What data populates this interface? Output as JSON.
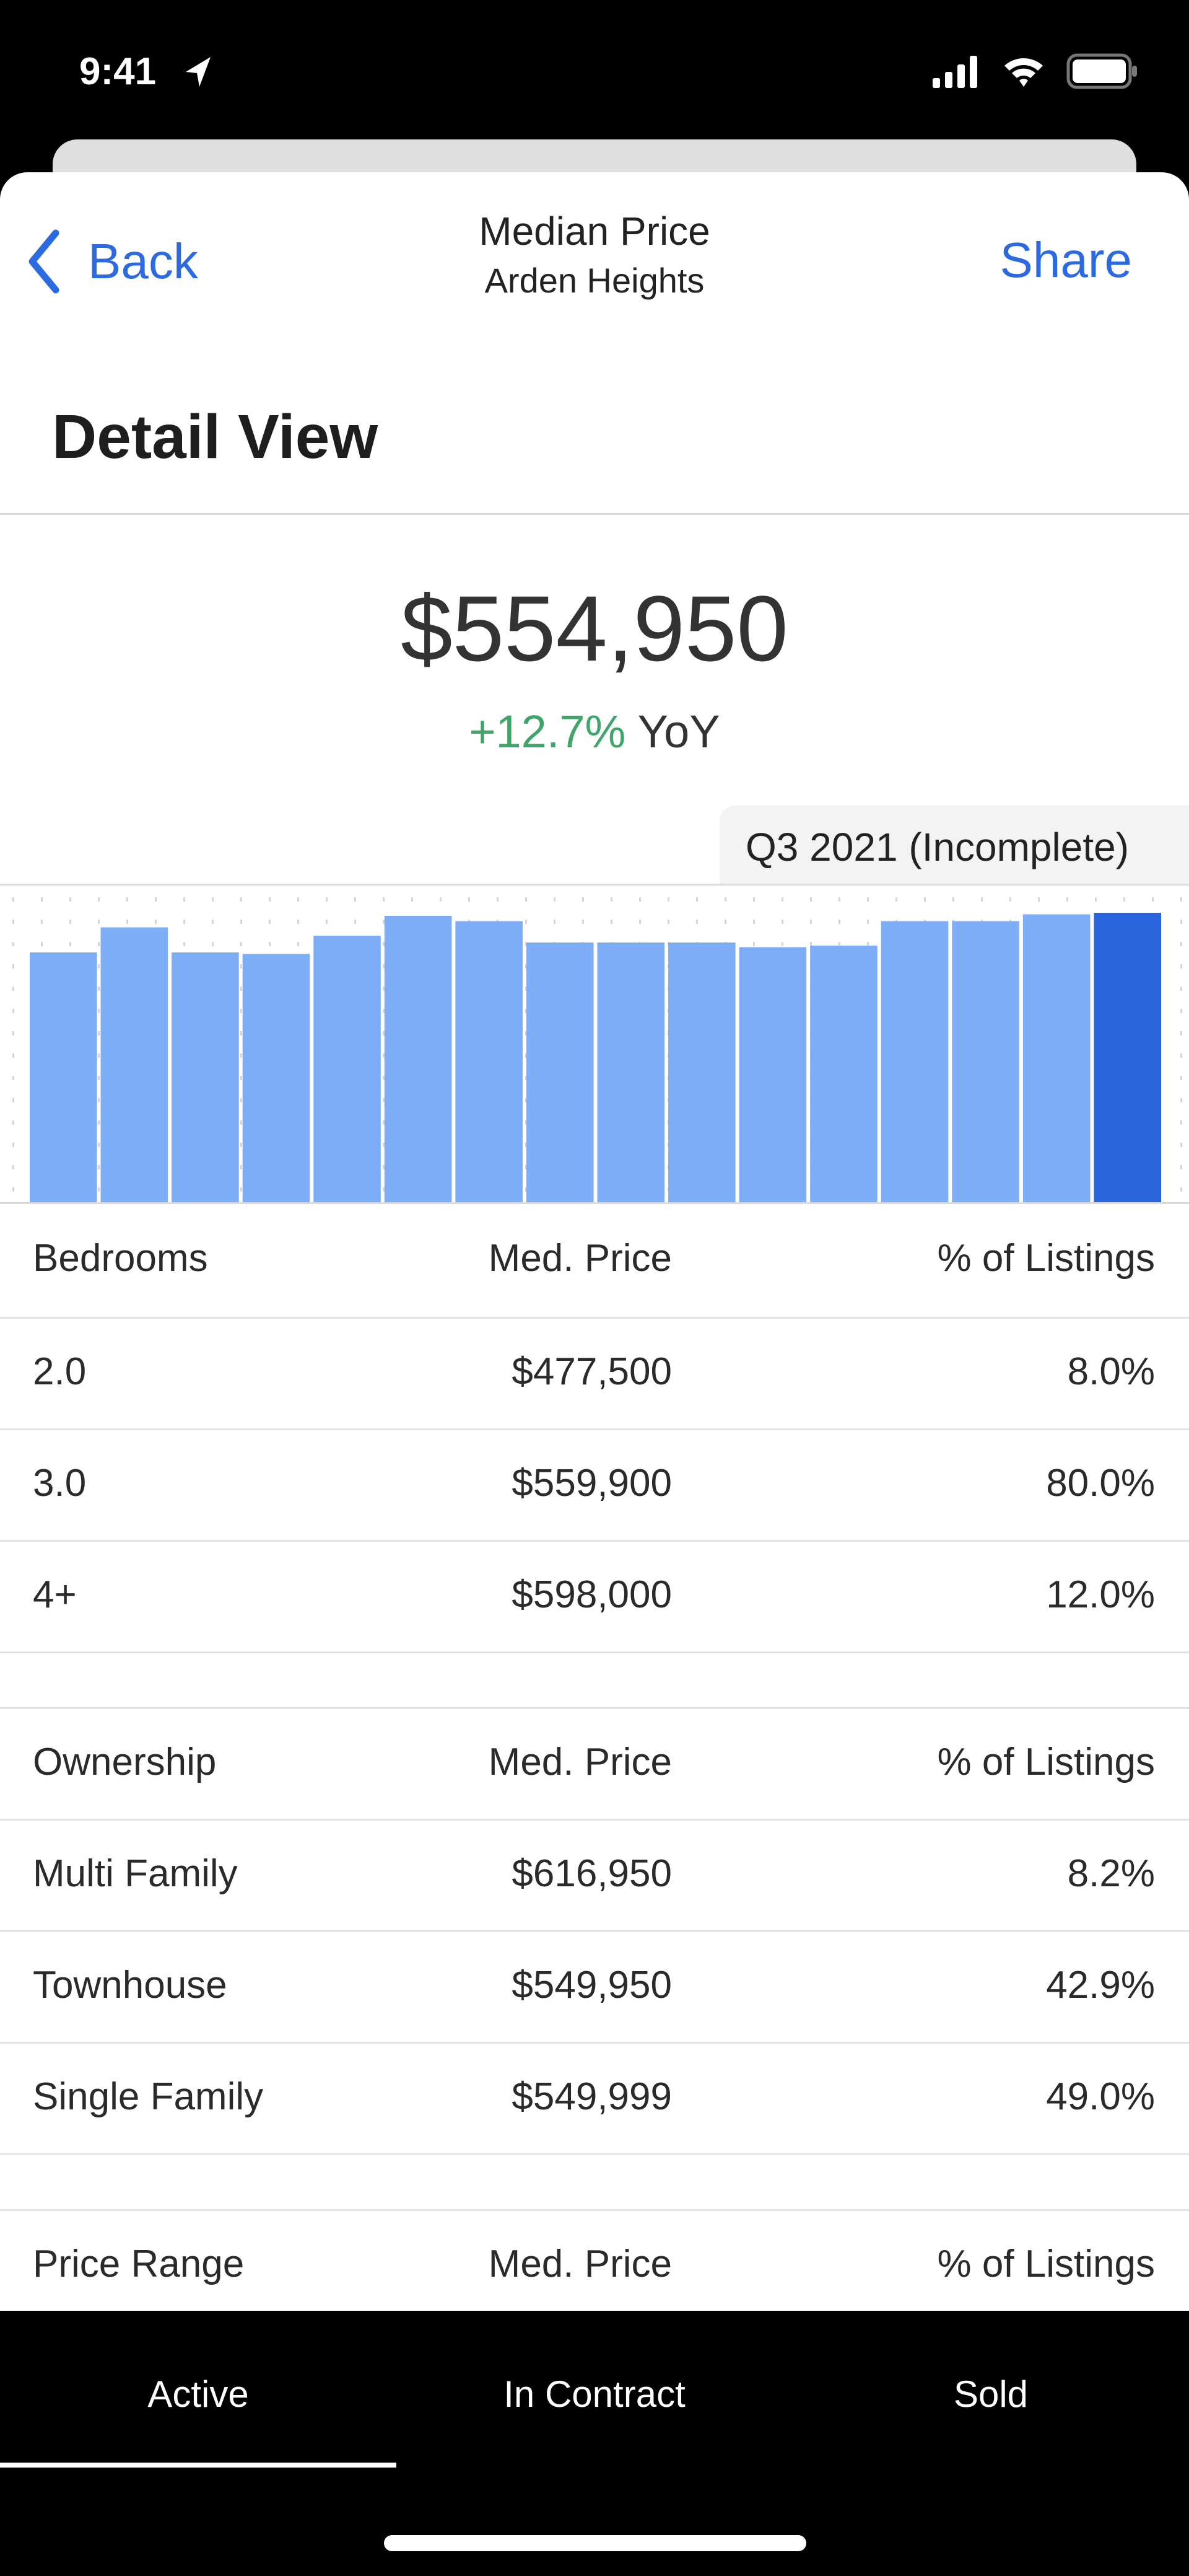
{
  "status_bar": {
    "time": "9:41",
    "icons": [
      "location-arrow-icon",
      "signal-icon",
      "wifi-icon",
      "battery-icon"
    ]
  },
  "nav": {
    "back_label": "Back",
    "title": "Median Price",
    "subtitle": "Arden Heights",
    "share_label": "Share"
  },
  "page_title": "Detail View",
  "summary": {
    "value": "$554,950",
    "change": "+12.7%",
    "change_suffix": "YoY",
    "change_color": "#3fa66a"
  },
  "period_label": "Q3 2021 (Incomplete)",
  "colors": {
    "accent": "#2b6ae0",
    "bar": "#7eadf8",
    "bar_selected": "#2864dc"
  },
  "chart_data": {
    "type": "bar",
    "values": [
      479000,
      527000,
      479000,
      476000,
      511000,
      549000,
      539000,
      498000,
      498000,
      498000,
      489000,
      492000,
      539000,
      539000,
      552000,
      554950
    ],
    "selected_index": 15,
    "grid": true
  },
  "tables": [
    {
      "headers": [
        "Bedrooms",
        "Med. Price",
        "% of Listings"
      ],
      "rows": [
        [
          "2.0",
          "$477,500",
          "8.0%"
        ],
        [
          "3.0",
          "$559,900",
          "80.0%"
        ],
        [
          "4+",
          "$598,000",
          "12.0%"
        ]
      ]
    },
    {
      "headers": [
        "Ownership",
        "Med. Price",
        "% of Listings"
      ],
      "rows": [
        [
          "Multi Family",
          "$616,950",
          "8.2%"
        ],
        [
          "Townhouse",
          "$549,950",
          "42.9%"
        ],
        [
          "Single Family",
          "$549,999",
          "49.0%"
        ]
      ]
    },
    {
      "headers": [
        "Price Range",
        "Med. Price",
        "% of Listings"
      ],
      "rows": []
    }
  ],
  "tabs": [
    {
      "label": "Active",
      "selected": true
    },
    {
      "label": "In Contract"
    },
    {
      "label": "Sold"
    }
  ]
}
